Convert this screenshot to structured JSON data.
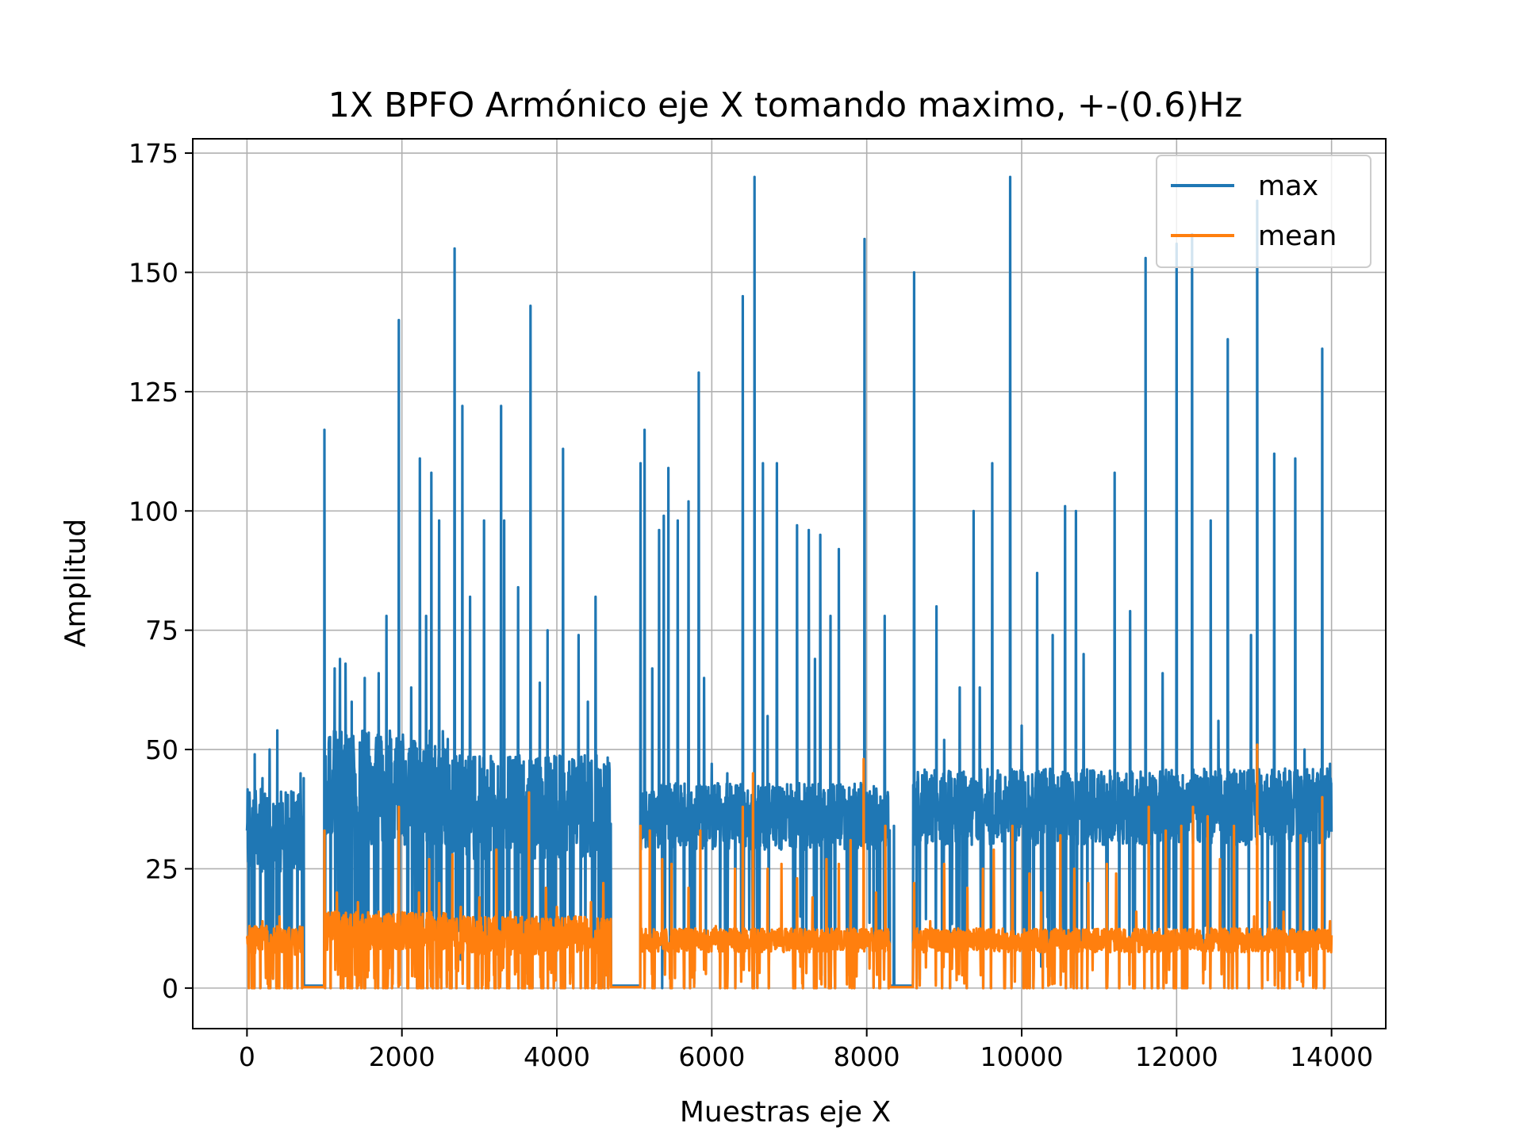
{
  "chart_data": {
    "type": "line",
    "title": "1X BPFO Armónico eje X tomando maximo, +-(0.6)Hz",
    "xlabel": "Muestras eje X",
    "ylabel": "Amplitud",
    "xlim": [
      -700,
      14700
    ],
    "ylim": [
      -8.5,
      178
    ],
    "x_ticks": [
      0,
      2000,
      4000,
      6000,
      8000,
      10000,
      12000,
      14000
    ],
    "x_tick_labels": [
      "0",
      "2000",
      "4000",
      "6000",
      "8000",
      "10000",
      "12000",
      "14000"
    ],
    "y_ticks": [
      0,
      25,
      50,
      75,
      100,
      125,
      150,
      175
    ],
    "y_tick_labels": [
      "0",
      "25",
      "50",
      "75",
      "100",
      "125",
      "150",
      "175"
    ],
    "grid": true,
    "legend_position": "top-right",
    "x_range": [
      0,
      14000
    ],
    "segments": [
      {
        "x_start": 0,
        "x_end": 720,
        "base_max": 33,
        "band_max": 9,
        "base_mean": 10,
        "band_mean": 3,
        "drop_rate": 0.15
      },
      {
        "x_start": 720,
        "x_end": 1000,
        "zero": true
      },
      {
        "x_start": 1000,
        "x_end": 2600,
        "base_max": 42,
        "band_max": 12,
        "base_mean": 12,
        "band_mean": 4,
        "drop_rate": 0.18
      },
      {
        "x_start": 2600,
        "x_end": 4700,
        "base_max": 38,
        "band_max": 11,
        "base_mean": 11,
        "band_mean": 4,
        "drop_rate": 0.16
      },
      {
        "x_start": 4700,
        "x_end": 5080,
        "zero": true
      },
      {
        "x_start": 5080,
        "x_end": 8300,
        "base_max": 36,
        "band_max": 7,
        "base_mean": 10,
        "band_mean": 2.5,
        "drop_rate": 0.08
      },
      {
        "x_start": 8300,
        "x_end": 8600,
        "zero": true
      },
      {
        "x_start": 8600,
        "x_end": 14000,
        "base_max": 38,
        "band_max": 8,
        "base_mean": 10,
        "band_mean": 2.5,
        "drop_rate": 0.06
      }
    ],
    "series": [
      {
        "name": "max",
        "color": "#1f77b4",
        "peaks": [
          [
            30,
            41
          ],
          [
            100,
            49
          ],
          [
            200,
            44
          ],
          [
            290,
            50
          ],
          [
            390,
            54
          ],
          [
            500,
            41
          ],
          [
            600,
            41
          ],
          [
            690,
            45
          ],
          [
            730,
            44
          ],
          [
            1000,
            117
          ],
          [
            1130,
            67
          ],
          [
            1200,
            69
          ],
          [
            1270,
            68
          ],
          [
            1350,
            60
          ],
          [
            1520,
            65
          ],
          [
            1700,
            66
          ],
          [
            1800,
            78
          ],
          [
            1960,
            140
          ],
          [
            2120,
            63
          ],
          [
            2230,
            111
          ],
          [
            2310,
            78
          ],
          [
            2380,
            108
          ],
          [
            2480,
            98
          ],
          [
            2680,
            155
          ],
          [
            2780,
            122
          ],
          [
            2880,
            82
          ],
          [
            3060,
            98
          ],
          [
            3280,
            122
          ],
          [
            3320,
            98
          ],
          [
            3500,
            84
          ],
          [
            3660,
            143
          ],
          [
            3780,
            64
          ],
          [
            3880,
            75
          ],
          [
            4080,
            113
          ],
          [
            4280,
            74
          ],
          [
            4400,
            60
          ],
          [
            4500,
            82
          ],
          [
            4620,
            45
          ],
          [
            5080,
            110
          ],
          [
            5130,
            117
          ],
          [
            5230,
            67
          ],
          [
            5320,
            96
          ],
          [
            5380,
            99
          ],
          [
            5440,
            109
          ],
          [
            5560,
            98
          ],
          [
            5700,
            102
          ],
          [
            5830,
            129
          ],
          [
            5900,
            65
          ],
          [
            6000,
            47
          ],
          [
            6200,
            45
          ],
          [
            6400,
            145
          ],
          [
            6550,
            170
          ],
          [
            6660,
            110
          ],
          [
            6720,
            57
          ],
          [
            6840,
            110
          ],
          [
            7100,
            97
          ],
          [
            7250,
            96
          ],
          [
            7330,
            69
          ],
          [
            7400,
            95
          ],
          [
            7530,
            78
          ],
          [
            7640,
            92
          ],
          [
            7770,
            42
          ],
          [
            7970,
            157
          ],
          [
            8100,
            35
          ],
          [
            8230,
            78
          ],
          [
            8350,
            34
          ],
          [
            8610,
            150
          ],
          [
            8900,
            80
          ],
          [
            9000,
            52
          ],
          [
            9200,
            63
          ],
          [
            9380,
            100
          ],
          [
            9460,
            63
          ],
          [
            9620,
            110
          ],
          [
            9850,
            170
          ],
          [
            10000,
            55
          ],
          [
            10200,
            87
          ],
          [
            10400,
            74
          ],
          [
            10560,
            101
          ],
          [
            10700,
            100
          ],
          [
            10800,
            70
          ],
          [
            11200,
            108
          ],
          [
            11400,
            79
          ],
          [
            11600,
            153
          ],
          [
            11820,
            66
          ],
          [
            12000,
            156
          ],
          [
            12200,
            158
          ],
          [
            12440,
            98
          ],
          [
            12540,
            56
          ],
          [
            12660,
            136
          ],
          [
            12960,
            74
          ],
          [
            13040,
            165
          ],
          [
            13260,
            112
          ],
          [
            13400,
            46
          ],
          [
            13530,
            111
          ],
          [
            13650,
            50
          ],
          [
            13880,
            134
          ],
          [
            13980,
            47
          ]
        ]
      },
      {
        "name": "mean",
        "color": "#ff7f0e",
        "peaks": [
          [
            30,
            13
          ],
          [
            200,
            14
          ],
          [
            420,
            15
          ],
          [
            600,
            12
          ],
          [
            1000,
            33
          ],
          [
            1160,
            20
          ],
          [
            1430,
            18
          ],
          [
            1700,
            16
          ],
          [
            1960,
            38
          ],
          [
            2220,
            20
          ],
          [
            2350,
            27
          ],
          [
            2480,
            22
          ],
          [
            2650,
            28
          ],
          [
            2760,
            17
          ],
          [
            3000,
            19
          ],
          [
            3220,
            29
          ],
          [
            3400,
            16
          ],
          [
            3640,
            41
          ],
          [
            3860,
            21
          ],
          [
            4000,
            17
          ],
          [
            4240,
            15
          ],
          [
            4440,
            18
          ],
          [
            4600,
            22
          ],
          [
            5080,
            34
          ],
          [
            5200,
            33
          ],
          [
            5360,
            27
          ],
          [
            5480,
            26
          ],
          [
            5700,
            21
          ],
          [
            5850,
            33
          ],
          [
            6050,
            13
          ],
          [
            6300,
            25
          ],
          [
            6400,
            38
          ],
          [
            6530,
            45
          ],
          [
            6720,
            25
          ],
          [
            6900,
            26
          ],
          [
            7100,
            23
          ],
          [
            7300,
            19
          ],
          [
            7480,
            27
          ],
          [
            7640,
            26
          ],
          [
            7790,
            31
          ],
          [
            7960,
            48
          ],
          [
            8120,
            20
          ],
          [
            8240,
            34
          ],
          [
            8610,
            22
          ],
          [
            8820,
            14
          ],
          [
            9000,
            26
          ],
          [
            9300,
            21
          ],
          [
            9500,
            25
          ],
          [
            9640,
            29
          ],
          [
            9880,
            34
          ],
          [
            10100,
            24
          ],
          [
            10250,
            20
          ],
          [
            10500,
            32
          ],
          [
            10680,
            25
          ],
          [
            10860,
            22
          ],
          [
            11100,
            26
          ],
          [
            11220,
            24
          ],
          [
            11480,
            16
          ],
          [
            11640,
            38
          ],
          [
            11860,
            33
          ],
          [
            12060,
            34
          ],
          [
            12210,
            38
          ],
          [
            12400,
            36
          ],
          [
            12560,
            27
          ],
          [
            12740,
            34
          ],
          [
            13000,
            15
          ],
          [
            13040,
            51
          ],
          [
            13200,
            18
          ],
          [
            13380,
            16
          ],
          [
            13600,
            32
          ],
          [
            13880,
            40
          ],
          [
            13980,
            14
          ]
        ]
      }
    ]
  }
}
